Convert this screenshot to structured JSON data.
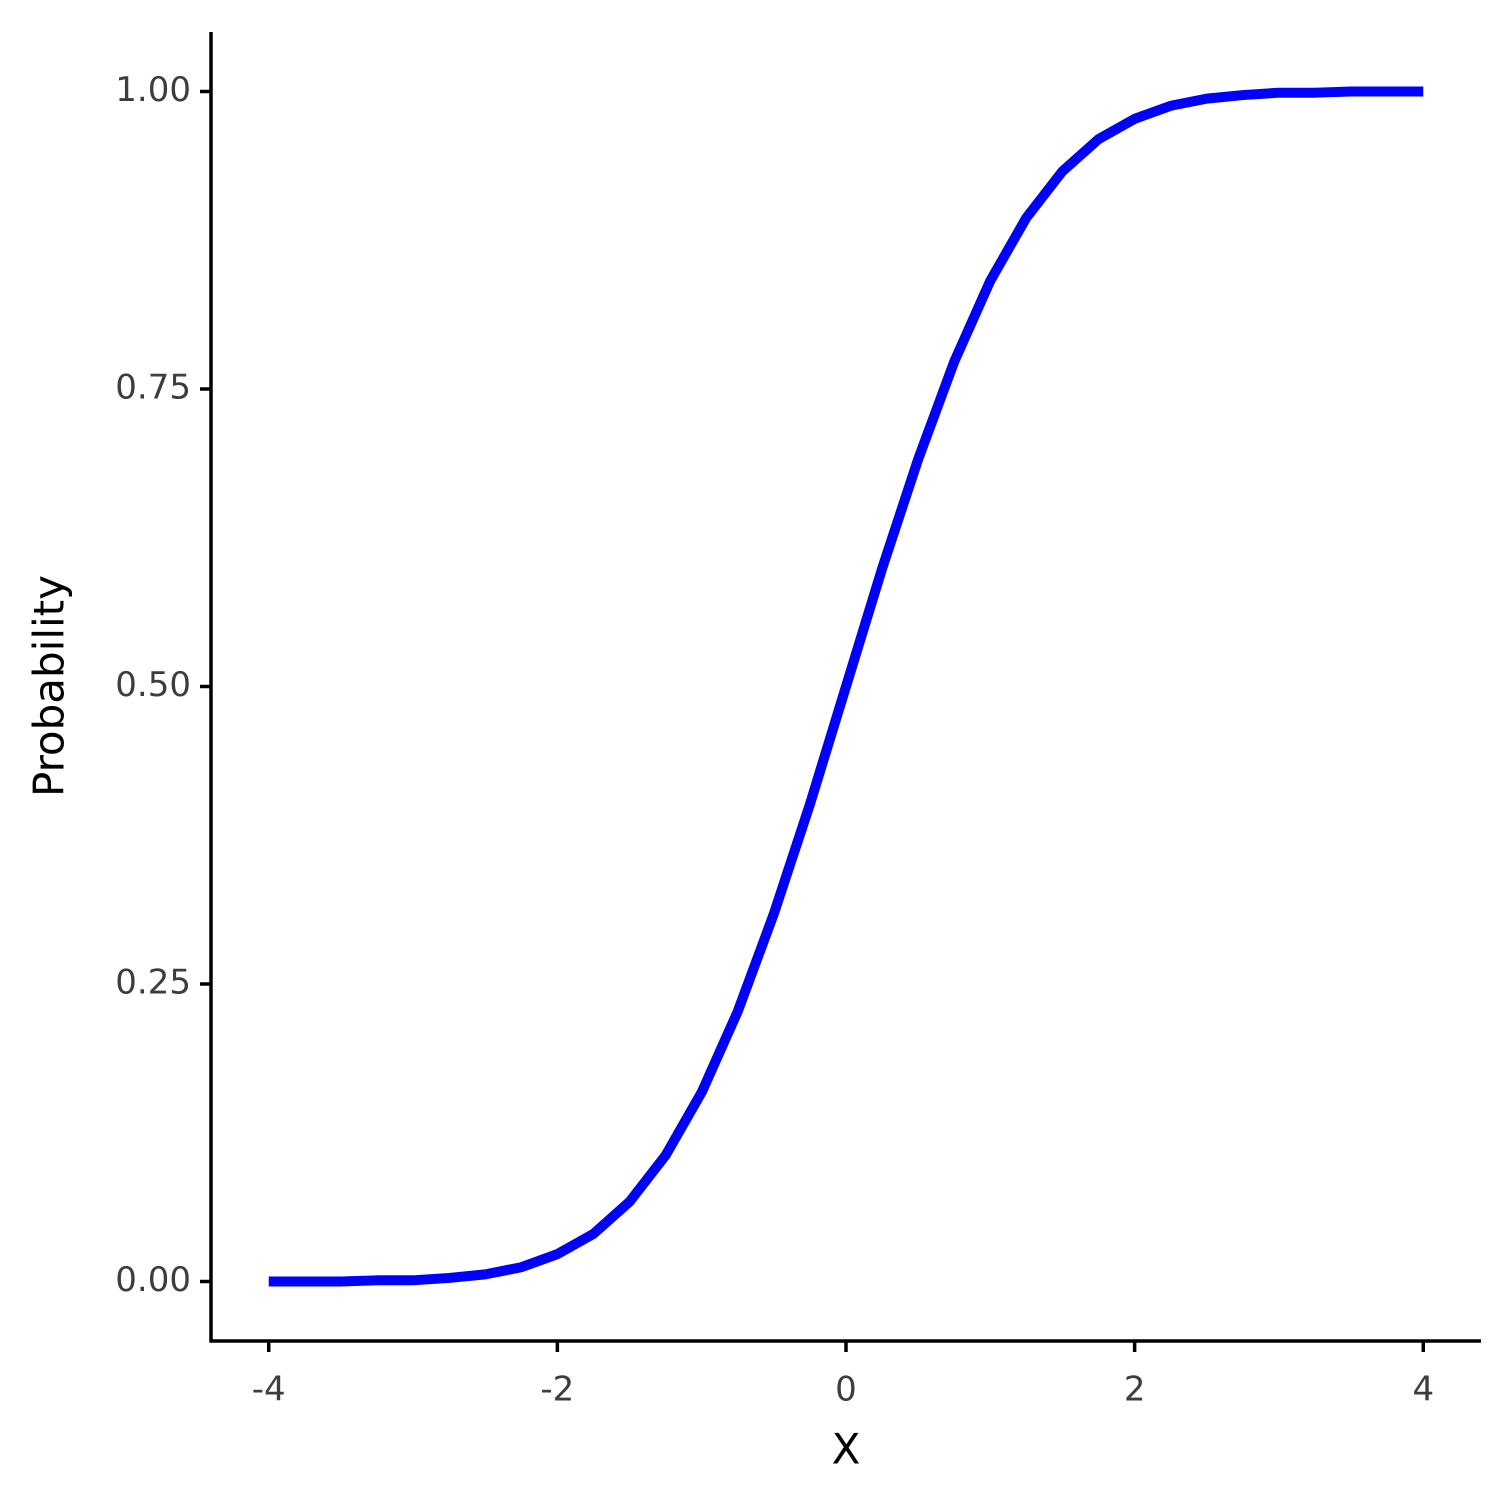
{
  "chart_data": {
    "type": "line",
    "x_label": "X",
    "y_label": "Probability",
    "x": [
      -4,
      -3.75,
      -3.5,
      -3.25,
      -3,
      -2.75,
      -2.5,
      -2.25,
      -2,
      -1.75,
      -1.5,
      -1.25,
      -1,
      -0.75,
      -0.5,
      -0.25,
      0,
      0.25,
      0.5,
      0.75,
      1,
      1.25,
      1.5,
      1.75,
      2,
      2.25,
      2.5,
      2.75,
      3,
      3.25,
      3.5,
      3.75,
      4
    ],
    "values": [
      0.0,
      0.0,
      0.0,
      0.001,
      0.001,
      0.003,
      0.006,
      0.012,
      0.023,
      0.04,
      0.067,
      0.106,
      0.159,
      0.227,
      0.309,
      0.401,
      0.5,
      0.599,
      0.691,
      0.773,
      0.841,
      0.894,
      0.933,
      0.96,
      0.977,
      0.988,
      0.994,
      0.997,
      0.999,
      0.999,
      1.0,
      1.0,
      1.0
    ],
    "color": "#0000ff",
    "xlim": [
      -4.4,
      4.4
    ],
    "xticks": [
      -4,
      -2,
      0,
      2,
      4
    ],
    "ylim": [
      -0.05,
      1.05
    ],
    "yticks": [
      {
        "value": 0,
        "label": "0.00"
      },
      0.25,
      {
        "value": 0.5,
        "label": "0.50"
      },
      0.75,
      {
        "value": 1,
        "label": "1.00"
      }
    ],
    "grid": false
  }
}
